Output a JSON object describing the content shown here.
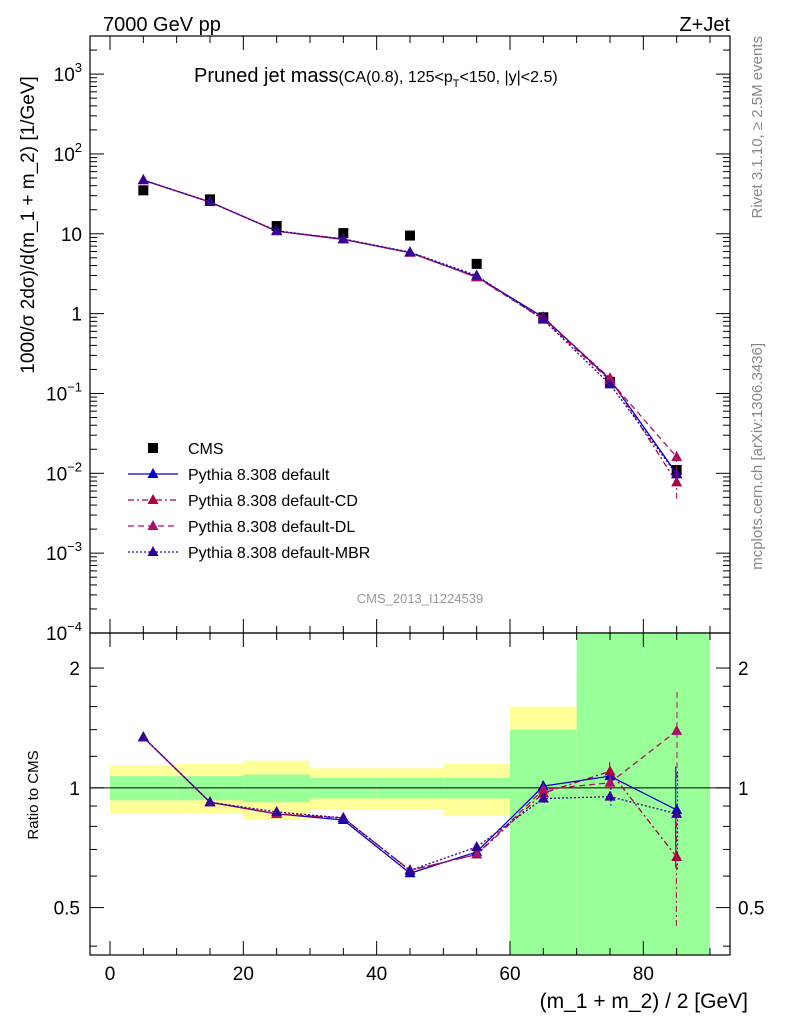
{
  "header": {
    "left": "7000 GeV pp",
    "right": "Z+Jet"
  },
  "side_labels": {
    "rivet": "Rivet 3.1.10, ≥ 2.5M events",
    "mcplots": "mcplots.cern.ch [arXiv:1306.3436]"
  },
  "watermark": "CMS_2013_I1224539",
  "colors": {
    "data": "#000000",
    "default": "#0000cc",
    "cd": "#aa0044",
    "dl": "#aa1166",
    "mbr": "#330099",
    "band_inner": "#99ff99",
    "band_outer": "#ffff99"
  },
  "chart_data": [
    {
      "type": "scatter",
      "panel": "main",
      "title": "Pruned jet mass",
      "title_cuts_prefix": "(CA(0.8), 125<p",
      "title_cuts_sub": "T",
      "title_cuts_suffix": "<150, |y|<2.5)",
      "ylabel": "1000/σ 2dσ)/d(m_1 + m_2) [1/GeV]",
      "xlim": [
        -3,
        93
      ],
      "ylim": [
        0.0001,
        3000
      ],
      "yscale": "log",
      "ytick_labels": [
        "10^-4",
        "10^-3",
        "10^-2",
        "10^-1",
        "1",
        "10",
        "10^2",
        "10^3"
      ],
      "legend_position": "bottom-left",
      "x": [
        5,
        15,
        25,
        35,
        45,
        55,
        65,
        75,
        85
      ],
      "series": [
        {
          "name": "CMS",
          "style": "data",
          "values": [
            35,
            27,
            12.5,
            10.2,
            9.5,
            4.2,
            0.9,
            0.14,
            0.011
          ]
        },
        {
          "name": "Pythia 8.308 default",
          "style": "default",
          "values": [
            47,
            25,
            10.8,
            8.5,
            5.8,
            2.9,
            0.9,
            0.15,
            0.0099
          ]
        },
        {
          "name": "Pythia 8.308 default-CD",
          "style": "cd",
          "values": [
            47,
            25,
            10.8,
            8.5,
            5.8,
            2.85,
            0.88,
            0.155,
            0.0077
          ]
        },
        {
          "name": "Pythia 8.308 default-DL",
          "style": "dl",
          "values": [
            47,
            25,
            10.8,
            8.6,
            5.8,
            2.85,
            0.85,
            0.145,
            0.016
          ]
        },
        {
          "name": "Pythia 8.308 default-MBR",
          "style": "mbr",
          "values": [
            47,
            25,
            10.9,
            8.6,
            5.9,
            3.0,
            0.84,
            0.13,
            0.0097
          ]
        }
      ]
    },
    {
      "type": "scatter",
      "panel": "ratio",
      "xlabel": "(m_1 + m_2) / 2 [GeV]",
      "ylabel": "Ratio to CMS",
      "xlim": [
        -3,
        93
      ],
      "ylim": [
        0.38,
        2.45
      ],
      "yscale": "log",
      "yticks": [
        0.5,
        1,
        2
      ],
      "ytick_labels": [
        "0.5",
        "1",
        "2"
      ],
      "xticks": [
        0,
        20,
        40,
        60,
        80
      ],
      "xtick_labels": [
        "0",
        "20",
        "40",
        "60",
        "80"
      ],
      "x": [
        5,
        15,
        25,
        35,
        45,
        55,
        65,
        75,
        85
      ],
      "bands": {
        "edges": [
          0,
          10,
          20,
          30,
          40,
          50,
          60,
          70,
          80,
          90
        ],
        "inner": [
          [
            0.93,
            1.07
          ],
          [
            0.93,
            1.07
          ],
          [
            0.92,
            1.08
          ],
          [
            0.94,
            1.06
          ],
          [
            0.94,
            1.06
          ],
          [
            0.94,
            1.06
          ],
          [
            0.0,
            1.4
          ],
          [
            0.0,
            3.0
          ],
          [
            0.0,
            3.0
          ]
        ],
        "outer": [
          [
            0.86,
            1.14
          ],
          [
            0.86,
            1.15
          ],
          [
            0.83,
            1.17
          ],
          [
            0.88,
            1.12
          ],
          [
            0.88,
            1.12
          ],
          [
            0.85,
            1.15
          ],
          [
            0.0,
            1.6
          ],
          [
            0.0,
            1.88
          ],
          [
            0.0,
            3.0
          ]
        ]
      },
      "series": [
        {
          "name": "Pythia 8.308 default",
          "style": "default",
          "values": [
            1.34,
            0.92,
            0.86,
            0.83,
            0.61,
            0.69,
            1.01,
            1.07,
            0.88
          ],
          "err": [
            0,
            0,
            0,
            0,
            0,
            0,
            0.03,
            0.05,
            0.25
          ]
        },
        {
          "name": "Pythia 8.308 default-CD",
          "style": "cd",
          "values": [
            1.34,
            0.92,
            0.86,
            0.84,
            0.62,
            0.68,
            0.97,
            1.1,
            0.67
          ],
          "err": [
            0,
            0,
            0,
            0,
            0,
            0,
            0.03,
            0.06,
            0.22
          ]
        },
        {
          "name": "Pythia 8.308 default-DL",
          "style": "dl",
          "values": [
            1.34,
            0.92,
            0.86,
            0.84,
            0.62,
            0.68,
            0.99,
            1.03,
            1.39
          ],
          "err": [
            0,
            0,
            0,
            0,
            0,
            0,
            0.03,
            0.06,
            0.35
          ]
        },
        {
          "name": "Pythia 8.308 default-MBR",
          "style": "mbr",
          "values": [
            1.34,
            0.92,
            0.87,
            0.84,
            0.62,
            0.71,
            0.94,
            0.95,
            0.86
          ],
          "err": [
            0,
            0,
            0,
            0,
            0,
            0,
            0.03,
            0.05,
            0.24
          ]
        }
      ]
    }
  ]
}
